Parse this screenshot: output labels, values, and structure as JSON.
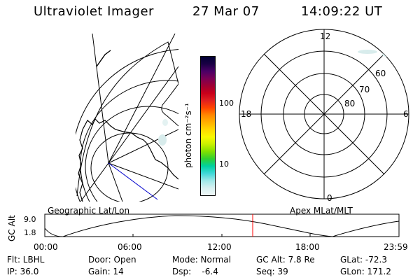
{
  "header": {
    "instrument": "Ultraviolet Imager",
    "date": "27 Mar 07",
    "time": "14:09:22 UT"
  },
  "colorbar": {
    "unit_label": "photon cm⁻²s⁻¹",
    "tick_100": "100",
    "tick_10": "10",
    "colors": [
      "#000033",
      "#1a0044",
      "#4a0066",
      "#7a0055",
      "#a00033",
      "#c8001a",
      "#e02020",
      "#ff4400",
      "#ff8800",
      "#ffb000",
      "#ffd800",
      "#f8f800",
      "#c8f000",
      "#80e000",
      "#30d030",
      "#00d0a0",
      "#40d8d8",
      "#a0e8e8",
      "#d8f0f0",
      "#f0f8f8"
    ]
  },
  "map_panel": {
    "label": "Geographic Lat/Lon"
  },
  "polar_panel": {
    "label": "Apex MLat/MLT",
    "mlt_top": "12",
    "mlt_left": "18",
    "mlt_right": "6",
    "mlt_bottom": "0",
    "lat_60": "60",
    "lat_70": "70",
    "lat_80": "80"
  },
  "altitude_plot": {
    "ylabel": "GC Alt",
    "ytick_top": "9.0",
    "ytick_bottom": "1.8",
    "xticks": [
      "00:00",
      "06:00",
      "12:00",
      "18:00",
      "23:59"
    ],
    "marker_color": "#ff0000"
  },
  "info": {
    "row1": [
      "Flt: LBHL",
      "Door: Open",
      "Mode: Normal",
      "GC Alt: 7.8 Re",
      "GLat: -72.3"
    ],
    "row2": [
      "IP: 36.0",
      "Gain: 14",
      "Dsp:    -6.4",
      "Seq: 39",
      "GLon: 171.2"
    ]
  }
}
